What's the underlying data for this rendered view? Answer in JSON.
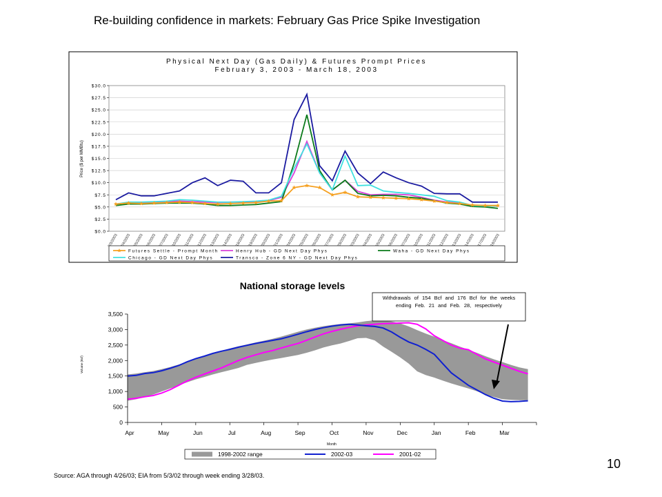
{
  "slide": {
    "title": "Re-building confidence in markets: February Gas Price Spike Investigation",
    "page_number": "10",
    "source": "Source: AGA through 4/26/03; EIA from 5/3/02 through week ending 3/28/03."
  },
  "chart_data": [
    {
      "type": "line",
      "title": "Physical Next Day (Gas Daily) & Futures Prompt Prices",
      "subtitle": "February 3, 2003 - March 18, 2003",
      "ylabel": "Price ($ per MMBtu)",
      "xlabel": "",
      "ylim": [
        0,
        30
      ],
      "y_ticks": [
        "$0.0",
        "$2.5",
        "$5.0",
        "$7.5",
        "$10.0",
        "$12.5",
        "$15.0",
        "$17.5",
        "$20.0",
        "$22.5",
        "$25.0",
        "$27.5",
        "$30.0"
      ],
      "y_tick_values": [
        0,
        2.5,
        5,
        7.5,
        10,
        12.5,
        15,
        17.5,
        20,
        22.5,
        25,
        27.5,
        30
      ],
      "grid": true,
      "legend_position": "bottom",
      "x": [
        "2/3/2003",
        "2/4/2003",
        "2/5/2003",
        "2/6/2003",
        "2/7/2003",
        "2/10/2003",
        "2/11/2003",
        "2/12/2003",
        "2/13/2003",
        "2/14/2003",
        "2/18/2003",
        "2/19/2003",
        "2/20/2003",
        "2/21/2003",
        "2/24/2003",
        "2/25/2003",
        "2/26/2003",
        "2/27/2003",
        "2/28/2003",
        "3/3/2003",
        "3/4/2003",
        "3/5/2003",
        "3/6/2003",
        "3/7/2003",
        "3/10/2003",
        "3/11/2003",
        "3/12/2003",
        "3/13/2003",
        "3/14/2003",
        "3/17/2003",
        "3/18/2003"
      ],
      "series": [
        {
          "name": "Futures Settle - Prompt Month",
          "color": "#f5a020",
          "marker": "star",
          "values": [
            5.6,
            5.8,
            5.7,
            5.8,
            5.9,
            6.0,
            5.9,
            5.7,
            5.6,
            5.7,
            5.8,
            5.9,
            6.2,
            6.3,
            9.0,
            9.4,
            9.0,
            7.5,
            8.0,
            7.1,
            7.0,
            6.9,
            6.8,
            6.7,
            6.5,
            6.2,
            5.9,
            5.7,
            5.4,
            5.3,
            5.3
          ]
        },
        {
          "name": "Henry Hub - GD Next Day Phys",
          "color": "#d840d8",
          "marker": "none",
          "values": [
            5.6,
            5.9,
            5.9,
            6.0,
            6.1,
            6.2,
            6.1,
            6.0,
            5.9,
            6.0,
            6.0,
            6.1,
            6.3,
            7.0,
            12.0,
            18.5,
            12.0,
            8.5,
            10.5,
            8.2,
            7.5,
            7.6,
            7.6,
            7.5,
            7.0,
            6.4,
            6.0,
            5.8,
            5.3,
            5.3,
            5.2
          ]
        },
        {
          "name": "Waha - GD Next Day Phys",
          "color": "#0a7a1a",
          "marker": "none",
          "values": [
            5.3,
            5.6,
            5.6,
            5.7,
            5.8,
            5.8,
            5.8,
            5.6,
            5.3,
            5.3,
            5.4,
            5.5,
            5.8,
            6.1,
            14.0,
            24.0,
            12.5,
            8.5,
            10.5,
            7.8,
            7.3,
            7.4,
            7.3,
            7.0,
            6.8,
            6.3,
            5.8,
            5.6,
            5.1,
            5.0,
            4.7
          ]
        },
        {
          "name": "Chicago - GD Next Day Phys",
          "color": "#40e0e0",
          "marker": "none",
          "values": [
            5.6,
            6.0,
            6.0,
            6.1,
            6.2,
            6.5,
            6.4,
            6.2,
            6.0,
            6.0,
            6.1,
            6.2,
            6.4,
            7.2,
            13.0,
            18.0,
            12.0,
            8.5,
            15.5,
            9.4,
            9.5,
            8.3,
            8.0,
            7.8,
            7.5,
            7.2,
            6.3,
            6.0,
            5.3,
            5.2,
            5.2
          ]
        },
        {
          "name": "Transco - Zone 6 NY - GD Next Day Phys",
          "color": "#1a1aa0",
          "marker": "none",
          "values": [
            6.5,
            7.9,
            7.3,
            7.3,
            7.8,
            8.3,
            10.0,
            11.0,
            9.4,
            10.5,
            10.3,
            7.9,
            7.9,
            10.0,
            23.0,
            28.2,
            13.5,
            10.4,
            16.5,
            12.0,
            9.8,
            12.2,
            11.0,
            10.0,
            9.3,
            7.8,
            7.7,
            7.7,
            6.0,
            6.0,
            6.0
          ]
        }
      ]
    },
    {
      "type": "area",
      "title": "National storage levels",
      "xlabel": "Month",
      "ylabel": "Volume (Bcf)",
      "ylim": [
        0,
        3500
      ],
      "y_ticks": [
        "0",
        "500",
        "1,000",
        "1,500",
        "2,000",
        "2,500",
        "3,000",
        "3,500"
      ],
      "y_tick_values": [
        0,
        500,
        1000,
        1500,
        2000,
        2500,
        3000,
        3500
      ],
      "grid": false,
      "legend_position": "bottom",
      "categories": [
        "Apr",
        "May",
        "Jun",
        "Jul",
        "Aug",
        "Sep",
        "Oct",
        "Nov",
        "Dec",
        "Jan",
        "Feb",
        "Mar"
      ],
      "x": [
        0,
        0.25,
        0.5,
        0.75,
        1,
        1.25,
        1.5,
        1.75,
        2,
        2.25,
        2.5,
        2.75,
        3,
        3.25,
        3.5,
        3.75,
        4,
        4.25,
        4.5,
        4.75,
        5,
        5.25,
        5.5,
        5.75,
        6,
        6.25,
        6.5,
        6.75,
        7,
        7.25,
        7.5,
        7.75,
        8,
        8.25,
        8.5,
        8.75,
        9,
        9.25,
        9.5,
        9.75,
        10,
        10.25,
        10.5,
        10.75,
        11,
        11.25,
        11.5,
        11.75
      ],
      "series": [
        {
          "name": "1998-2002 range",
          "color": "#999999",
          "kind": "band",
          "upper": [
            1550,
            1580,
            1620,
            1660,
            1720,
            1790,
            1870,
            1960,
            2060,
            2150,
            2230,
            2310,
            2390,
            2460,
            2520,
            2580,
            2640,
            2700,
            2770,
            2850,
            2930,
            3000,
            3060,
            3110,
            3150,
            3180,
            3200,
            3230,
            3270,
            3300,
            3290,
            3260,
            3200,
            3100,
            2980,
            2870,
            2770,
            2660,
            2560,
            2450,
            2350,
            2250,
            2140,
            2040,
            1950,
            1860,
            1780,
            1720
          ],
          "lower": [
            700,
            750,
            820,
            900,
            1000,
            1100,
            1200,
            1300,
            1390,
            1470,
            1550,
            1620,
            1690,
            1760,
            1860,
            1920,
            1980,
            2030,
            2080,
            2130,
            2180,
            2250,
            2330,
            2420,
            2490,
            2550,
            2630,
            2720,
            2730,
            2650,
            2450,
            2280,
            2100,
            1900,
            1650,
            1530,
            1450,
            1350,
            1260,
            1180,
            1100,
            1010,
            900,
            820,
            750,
            730,
            720,
            720
          ]
        },
        {
          "name": "2002-03",
          "color": "#1020d0",
          "kind": "line",
          "values": [
            1500,
            1520,
            1580,
            1610,
            1670,
            1750,
            1840,
            1960,
            2060,
            2140,
            2230,
            2300,
            2360,
            2430,
            2490,
            2550,
            2600,
            2650,
            2700,
            2770,
            2850,
            2930,
            3000,
            3060,
            3110,
            3150,
            3170,
            3150,
            3120,
            3100,
            3050,
            2920,
            2750,
            2600,
            2500,
            2360,
            2200,
            1900,
            1600,
            1400,
            1200,
            1050,
            900,
            780,
            690,
            670,
            680,
            700
          ]
        },
        {
          "name": "2001-02",
          "color": "#ff00ff",
          "kind": "line",
          "values": [
            750,
            780,
            830,
            870,
            950,
            1060,
            1200,
            1340,
            1460,
            1560,
            1660,
            1760,
            1880,
            2000,
            2100,
            2180,
            2260,
            2320,
            2400,
            2480,
            2550,
            2650,
            2760,
            2860,
            2940,
            3010,
            3070,
            3120,
            3150,
            3170,
            3190,
            3200,
            3210,
            3220,
            3170,
            3020,
            2800,
            2650,
            2500,
            2400,
            2350,
            2200,
            2050,
            1950,
            1850,
            1750,
            1650,
            1570
          ]
        }
      ],
      "annotation": "Withdrawals of 154 Bcf and 176 Bcf for the weeks ending Feb. 21 and Feb. 28, respectively"
    }
  ]
}
